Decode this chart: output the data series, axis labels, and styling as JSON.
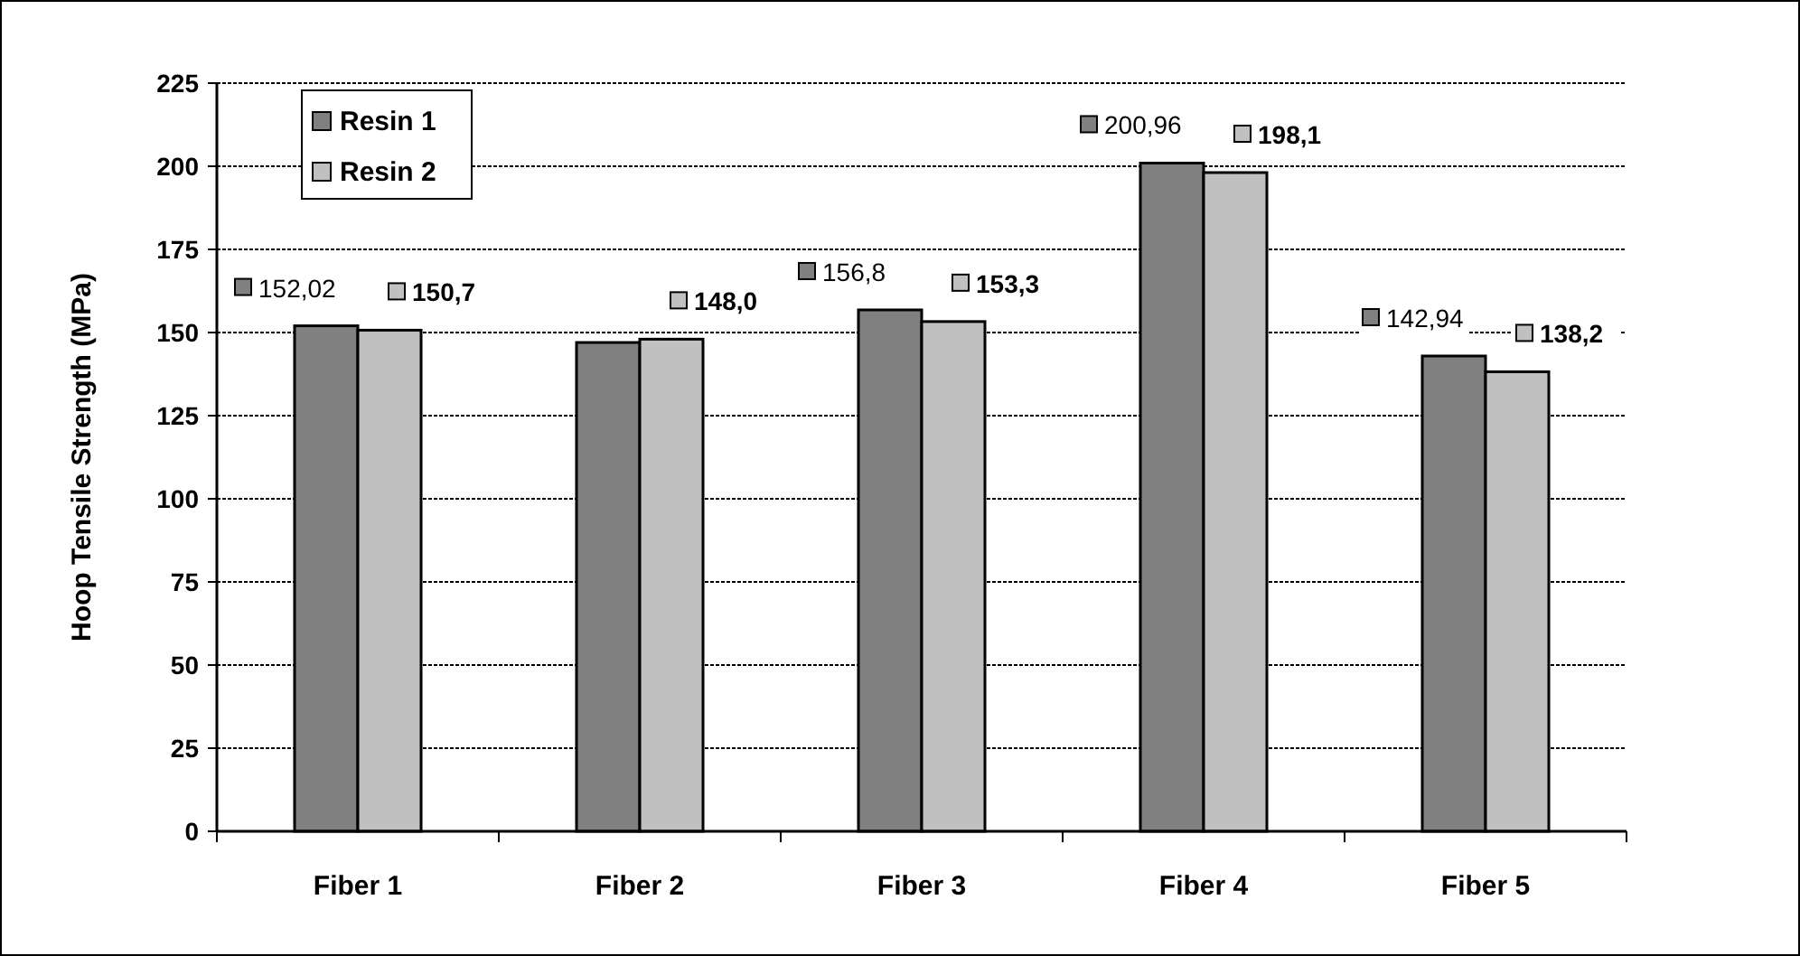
{
  "chart_data": {
    "type": "bar",
    "ylabel": "Hoop Tensile Strength (MPa)",
    "categories": [
      "Fiber 1",
      "Fiber 2",
      "Fiber 3",
      "Fiber 4",
      "Fiber 5"
    ],
    "series": [
      {
        "name": "Resin 1",
        "color": "#808080",
        "values": [
          152.02,
          147,
          156.8,
          200.96,
          142.94
        ],
        "value_labels": [
          "152,02",
          null,
          "156,8",
          "200,96",
          "142,94"
        ]
      },
      {
        "name": "Resin 2",
        "color": "#c0c0c0",
        "values": [
          150.7,
          148.0,
          153.3,
          198.1,
          138.2
        ],
        "value_labels": [
          "150,7",
          "148,0",
          "153,3",
          "198,1",
          "138,2"
        ]
      }
    ],
    "ylim": [
      0,
      225
    ],
    "yticks": [
      0,
      25,
      50,
      75,
      100,
      125,
      150,
      175,
      200,
      225
    ],
    "grid": "y",
    "legend": "top left"
  }
}
